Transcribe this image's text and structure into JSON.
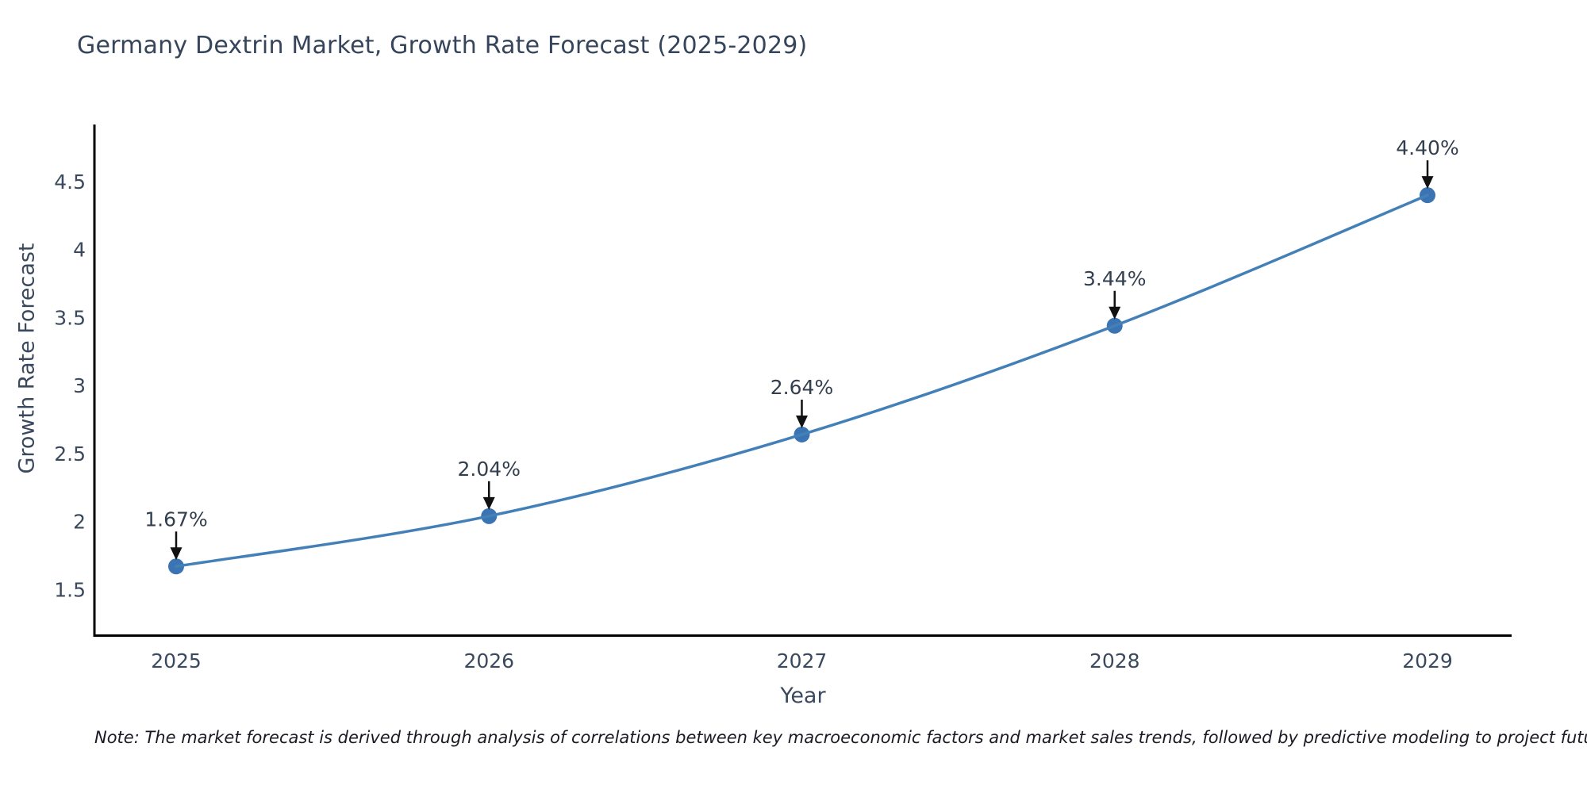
{
  "title": "Germany Dextrin Market, Growth Rate Forecast (2025-2029)",
  "axis": {
    "xlabel": "Year",
    "ylabel": "Growth Rate Forecast"
  },
  "note": "Note: The market forecast is derived through analysis of correlations between key macroeconomic factors and market sales trends, followed by predictive modeling to project future sales",
  "chart_data": {
    "type": "line",
    "title": "Germany Dextrin Market, Growth Rate Forecast (2025-2029)",
    "xlabel": "Year",
    "ylabel": "Growth Rate Forecast",
    "x": [
      "2025",
      "2026",
      "2027",
      "2028",
      "2029"
    ],
    "values": [
      1.67,
      2.04,
      2.64,
      3.44,
      4.4
    ],
    "point_labels": [
      "1.67%",
      "2.04%",
      "2.64%",
      "3.44%",
      "4.40%"
    ],
    "yticks": [
      1.5,
      2,
      2.5,
      3,
      3.5,
      4,
      4.5
    ],
    "ytick_labels": [
      "1.5",
      "2",
      "2.5",
      "3",
      "3.5",
      "4",
      "4.5"
    ],
    "ylim": [
      1.17,
      4.92
    ],
    "grid": false,
    "legend": null,
    "annotation_style": "black down arrow from label to marker",
    "colors": {
      "line": "#4380b8",
      "marker": "#3a74b2",
      "arrow": "#111111",
      "tick_text": "#3b495e",
      "spine": "#000000"
    }
  }
}
